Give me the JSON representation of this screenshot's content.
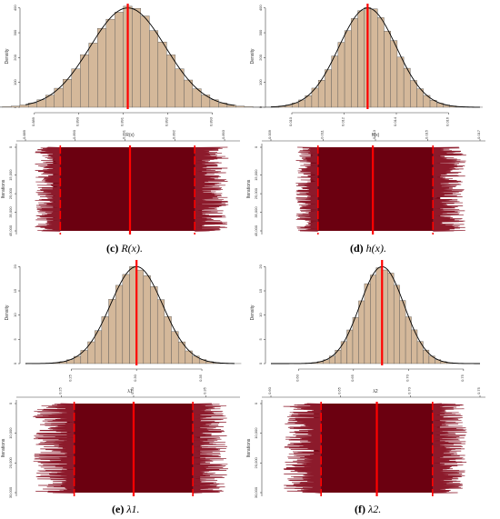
{
  "captions": [
    {
      "letter": "(c)",
      "math": "R(x)."
    },
    {
      "letter": "(d)",
      "math": "h(x)."
    },
    {
      "letter": "(e)",
      "math": "λ1."
    },
    {
      "letter": "(f)",
      "math": "λ2."
    }
  ],
  "colors": {
    "bar_fill": "#d4b89a",
    "bar_stroke": "#555555",
    "density_line": "#000000",
    "mean_line": "#ff0000",
    "trace_fill": "#6b0010",
    "trace_line": "#8c1a2b",
    "hpd_line": "#ff0000"
  },
  "chart_data": [
    {
      "panel": "c",
      "type": "histogram",
      "ylabel": "Density",
      "xlabel": "R(x)",
      "xticks": [
        "0.889",
        "0.890",
        "0.891",
        "0.892",
        "0.893"
      ],
      "yticks": [
        "0",
        "100",
        "200",
        "300",
        "400"
      ],
      "xlim": [
        0.8888,
        0.8935
      ],
      "ylim": [
        0,
        410
      ],
      "mean": 0.8911,
      "sd": 0.00085,
      "peak": 400,
      "bins": 35,
      "trace": {
        "type": "trace",
        "ylabel": "Iterations",
        "value_ticks": [
          "0.889",
          "0.890",
          "0.891",
          "0.892",
          "0.893"
        ],
        "iteration_ticks": [
          "0",
          "15,000",
          "25,000",
          "35,000",
          "45,000"
        ],
        "iterations": 45000,
        "mean": 0.8911,
        "hpd": [
          0.8897,
          0.8924
        ],
        "spread": [
          0.8891,
          0.8932
        ]
      }
    },
    {
      "panel": "d",
      "type": "histogram",
      "ylabel": "Density",
      "xlabel": "h(x)",
      "xticks": [
        "0.010",
        "0.012",
        "0.014",
        "0.016"
      ],
      "yticks": [
        "0",
        "100",
        "200",
        "300",
        "400"
      ],
      "xlim": [
        0.0092,
        0.0172
      ],
      "ylim": [
        0,
        410
      ],
      "mean": 0.0129,
      "sd": 0.0011,
      "peak": 400,
      "bins": 35,
      "trace": {
        "type": "trace",
        "ylabel": "Iterations",
        "value_ticks": [
          "0.009",
          "0.011",
          "0.013",
          "0.015",
          "0.017"
        ],
        "iteration_ticks": [
          "0",
          "15,000",
          "25,000",
          "35,000",
          "45,000"
        ],
        "iterations": 45000,
        "mean": 0.0129,
        "hpd": [
          0.0108,
          0.0152
        ],
        "spread": [
          0.0098,
          0.0167
        ]
      }
    },
    {
      "panel": "e",
      "type": "histogram",
      "ylabel": "Density",
      "xlabel": "λ1",
      "xticks": [
        "0.25",
        "0.30",
        "0.35"
      ],
      "yticks": [
        "0",
        "5",
        "10",
        "15",
        "20"
      ],
      "xlim": [
        0.215,
        0.375
      ],
      "ylim": [
        0,
        21
      ],
      "mean": 0.3,
      "sd": 0.02,
      "peak": 20,
      "bins": 30,
      "trace": {
        "type": "trace",
        "ylabel": "Iterations",
        "value_ticks": [
          "0.25",
          "0.30",
          "0.35"
        ],
        "iteration_ticks": [
          "0",
          "10,000",
          "20,000",
          "30,000"
        ],
        "iterations": 30000,
        "mean": 0.3,
        "hpd": [
          0.2588,
          0.3411
        ],
        "spread": [
          0.225,
          0.37
        ]
      }
    },
    {
      "panel": "f",
      "type": "histogram",
      "ylabel": "Density",
      "xlabel": "λ2",
      "xticks": [
        "0.60",
        "0.65",
        "0.70",
        "0.75"
      ],
      "yticks": [
        "0",
        "5",
        "10",
        "15",
        "20"
      ],
      "xlim": [
        0.575,
        0.765
      ],
      "ylim": [
        0,
        21
      ],
      "mean": 0.676,
      "sd": 0.02,
      "peak": 20,
      "bins": 30,
      "trace": {
        "type": "trace",
        "ylabel": "Iterations",
        "value_ticks": [
          "0.60",
          "0.65",
          "0.70",
          "0.75"
        ],
        "iteration_ticks": [
          "0",
          "10,000",
          "20,000",
          "30,000"
        ],
        "iterations": 30000,
        "mean": 0.676,
        "hpd": [
          0.636,
          0.716
        ],
        "spread": [
          0.604,
          0.745
        ]
      }
    }
  ]
}
